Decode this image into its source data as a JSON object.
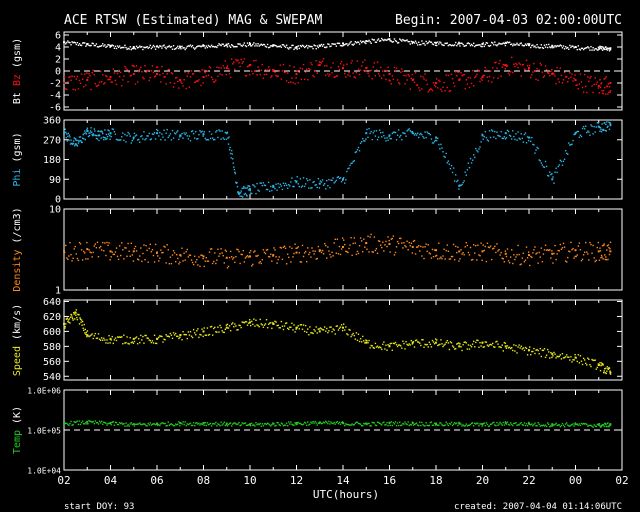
{
  "header": {
    "title": "ACE RTSW (Estimated) MAG & SWEPAM",
    "begin": "Begin: 2007-04-03 02:00:00UTC"
  },
  "footer": {
    "start_doy": "start DOY:  93",
    "created": "created: 2007-04-04 01:14:06UTC",
    "x_axis_label": "UTC(hours)"
  },
  "x_tick_labels": [
    "02",
    "04",
    "06",
    "08",
    "10",
    "12",
    "14",
    "16",
    "18",
    "20",
    "22",
    "00",
    "02"
  ],
  "colors": {
    "bt": "#ffffff",
    "bz": "#ff1010",
    "phi": "#2ab6e6",
    "density": "#ff8a1e",
    "speed": "#e8e81a",
    "temp": "#22cc22",
    "frame": "#ffffff",
    "background": "#000000"
  },
  "chart_data": [
    {
      "type": "scatter",
      "panel": "mag",
      "ylabel": [
        "Bt",
        "Bz",
        "(gsm)"
      ],
      "ylim": [
        -6.5,
        6.5
      ],
      "yticks": [
        6,
        4,
        2,
        0,
        -2,
        -4,
        -6
      ],
      "ytick_labels": [
        "6",
        "4",
        "2",
        "0",
        "-2",
        "-4",
        "-6"
      ],
      "reference_line": 0,
      "xlim": [
        0,
        24
      ],
      "series": [
        {
          "name": "Bt",
          "x": [
            0,
            1,
            2,
            3,
            4,
            5,
            6,
            7,
            8,
            9,
            10,
            11,
            12,
            13,
            14,
            15,
            16,
            17,
            18,
            19,
            20,
            21,
            22,
            23,
            23.5
          ],
          "values": [
            4.8,
            4.5,
            4.2,
            4.0,
            4.1,
            4.0,
            4.2,
            4.4,
            4.5,
            4.3,
            4.0,
            4.2,
            4.6,
            5.0,
            5.3,
            4.8,
            4.7,
            4.6,
            4.5,
            4.7,
            4.3,
            4.2,
            4.0,
            3.9,
            3.8
          ]
        },
        {
          "name": "Bz",
          "x": [
            0,
            1,
            2,
            3,
            4,
            5,
            6,
            7,
            8,
            9,
            10,
            11,
            12,
            13,
            14,
            15,
            16,
            17,
            18,
            19,
            20,
            21,
            22,
            23,
            23.5
          ],
          "values": [
            -2.0,
            -1.5,
            -1.0,
            -0.5,
            -0.5,
            -1.5,
            -1.0,
            0.5,
            1.0,
            0.0,
            -0.5,
            1.0,
            0.5,
            0.5,
            -0.5,
            -1.5,
            -2.0,
            -1.5,
            -1.0,
            1.0,
            0.5,
            -0.5,
            -1.5,
            -2.5,
            -2.0
          ]
        }
      ]
    },
    {
      "type": "scatter",
      "panel": "phi",
      "ylabel": [
        "Phi",
        "(gsm)"
      ],
      "ylim": [
        0,
        360
      ],
      "yticks": [
        360,
        270,
        180,
        90,
        0
      ],
      "ytick_labels": [
        "360",
        "270",
        "180",
        "90",
        "0"
      ],
      "xlim": [
        0,
        24
      ],
      "series": [
        {
          "name": "Phi",
          "x": [
            0,
            0.5,
            1,
            1.5,
            2,
            3,
            4,
            5,
            6,
            7,
            7.5,
            8,
            9,
            10,
            11,
            12,
            13,
            14,
            15,
            16,
            17,
            18,
            19,
            20,
            21,
            22,
            23,
            23.5
          ],
          "values": [
            300,
            250,
            310,
            290,
            300,
            280,
            300,
            290,
            295,
            300,
            30,
            45,
            60,
            80,
            70,
            90,
            300,
            290,
            300,
            280,
            60,
            290,
            300,
            280,
            90,
            300,
            330,
            340
          ]
        }
      ]
    },
    {
      "type": "scatter",
      "panel": "density",
      "ylabel": [
        "Density",
        "(/cm3)"
      ],
      "ylim": [
        1,
        10
      ],
      "yscale": "log",
      "yticks": [
        10,
        1
      ],
      "ytick_labels": [
        "10",
        "1"
      ],
      "xlim": [
        0,
        24
      ],
      "series": [
        {
          "name": "Density",
          "x": [
            0,
            1,
            2,
            3,
            4,
            5,
            6,
            7,
            8,
            9,
            10,
            11,
            12,
            13,
            14,
            15,
            16,
            17,
            18,
            19,
            20,
            21,
            22,
            23,
            23.5
          ],
          "values": [
            3.0,
            3.2,
            3.0,
            3.0,
            2.9,
            2.7,
            2.6,
            2.5,
            2.6,
            2.7,
            2.9,
            3.1,
            3.4,
            3.8,
            3.7,
            3.4,
            3.1,
            3.0,
            3.0,
            2.8,
            2.7,
            2.8,
            3.1,
            3.0,
            3.0
          ]
        }
      ]
    },
    {
      "type": "scatter",
      "panel": "speed",
      "ylabel": [
        "Speed",
        "(km/s)"
      ],
      "ylim": [
        535,
        642
      ],
      "yticks": [
        640,
        620,
        600,
        580,
        560,
        540
      ],
      "ytick_labels": [
        "640",
        "620",
        "600",
        "580",
        "560",
        "540"
      ],
      "xlim": [
        0,
        24
      ],
      "series": [
        {
          "name": "Speed",
          "x": [
            0,
            0.5,
            1,
            2,
            3,
            4,
            5,
            6,
            7,
            8,
            9,
            10,
            11,
            12,
            13,
            14,
            15,
            16,
            17,
            18,
            19,
            20,
            21,
            22,
            23,
            23.5
          ],
          "values": [
            610,
            625,
            595,
            590,
            590,
            590,
            595,
            600,
            605,
            612,
            610,
            605,
            600,
            605,
            585,
            580,
            585,
            585,
            580,
            585,
            580,
            575,
            570,
            565,
            555,
            545
          ]
        }
      ]
    },
    {
      "type": "scatter",
      "panel": "temp",
      "ylabel": [
        "Temp",
        "(K)"
      ],
      "ylim": [
        10000,
        1000000
      ],
      "yscale": "log",
      "yticks": [
        1000000,
        100000,
        10000
      ],
      "ytick_labels": [
        "1.0E+06",
        "1.0E+05",
        "1.0E+04"
      ],
      "reference_line": 100000,
      "xlim": [
        0,
        24
      ],
      "series": [
        {
          "name": "Temp",
          "x": [
            0,
            1,
            2,
            3,
            4,
            5,
            6,
            7,
            8,
            9,
            10,
            11,
            12,
            13,
            14,
            15,
            16,
            17,
            18,
            19,
            20,
            21,
            22,
            23,
            23.5
          ],
          "values": [
            150000,
            160000,
            150000,
            140000,
            145000,
            150000,
            150000,
            145000,
            140000,
            145000,
            150000,
            155000,
            150000,
            145000,
            150000,
            150000,
            145000,
            145000,
            140000,
            150000,
            145000,
            140000,
            140000,
            135000,
            140000
          ]
        }
      ]
    }
  ]
}
